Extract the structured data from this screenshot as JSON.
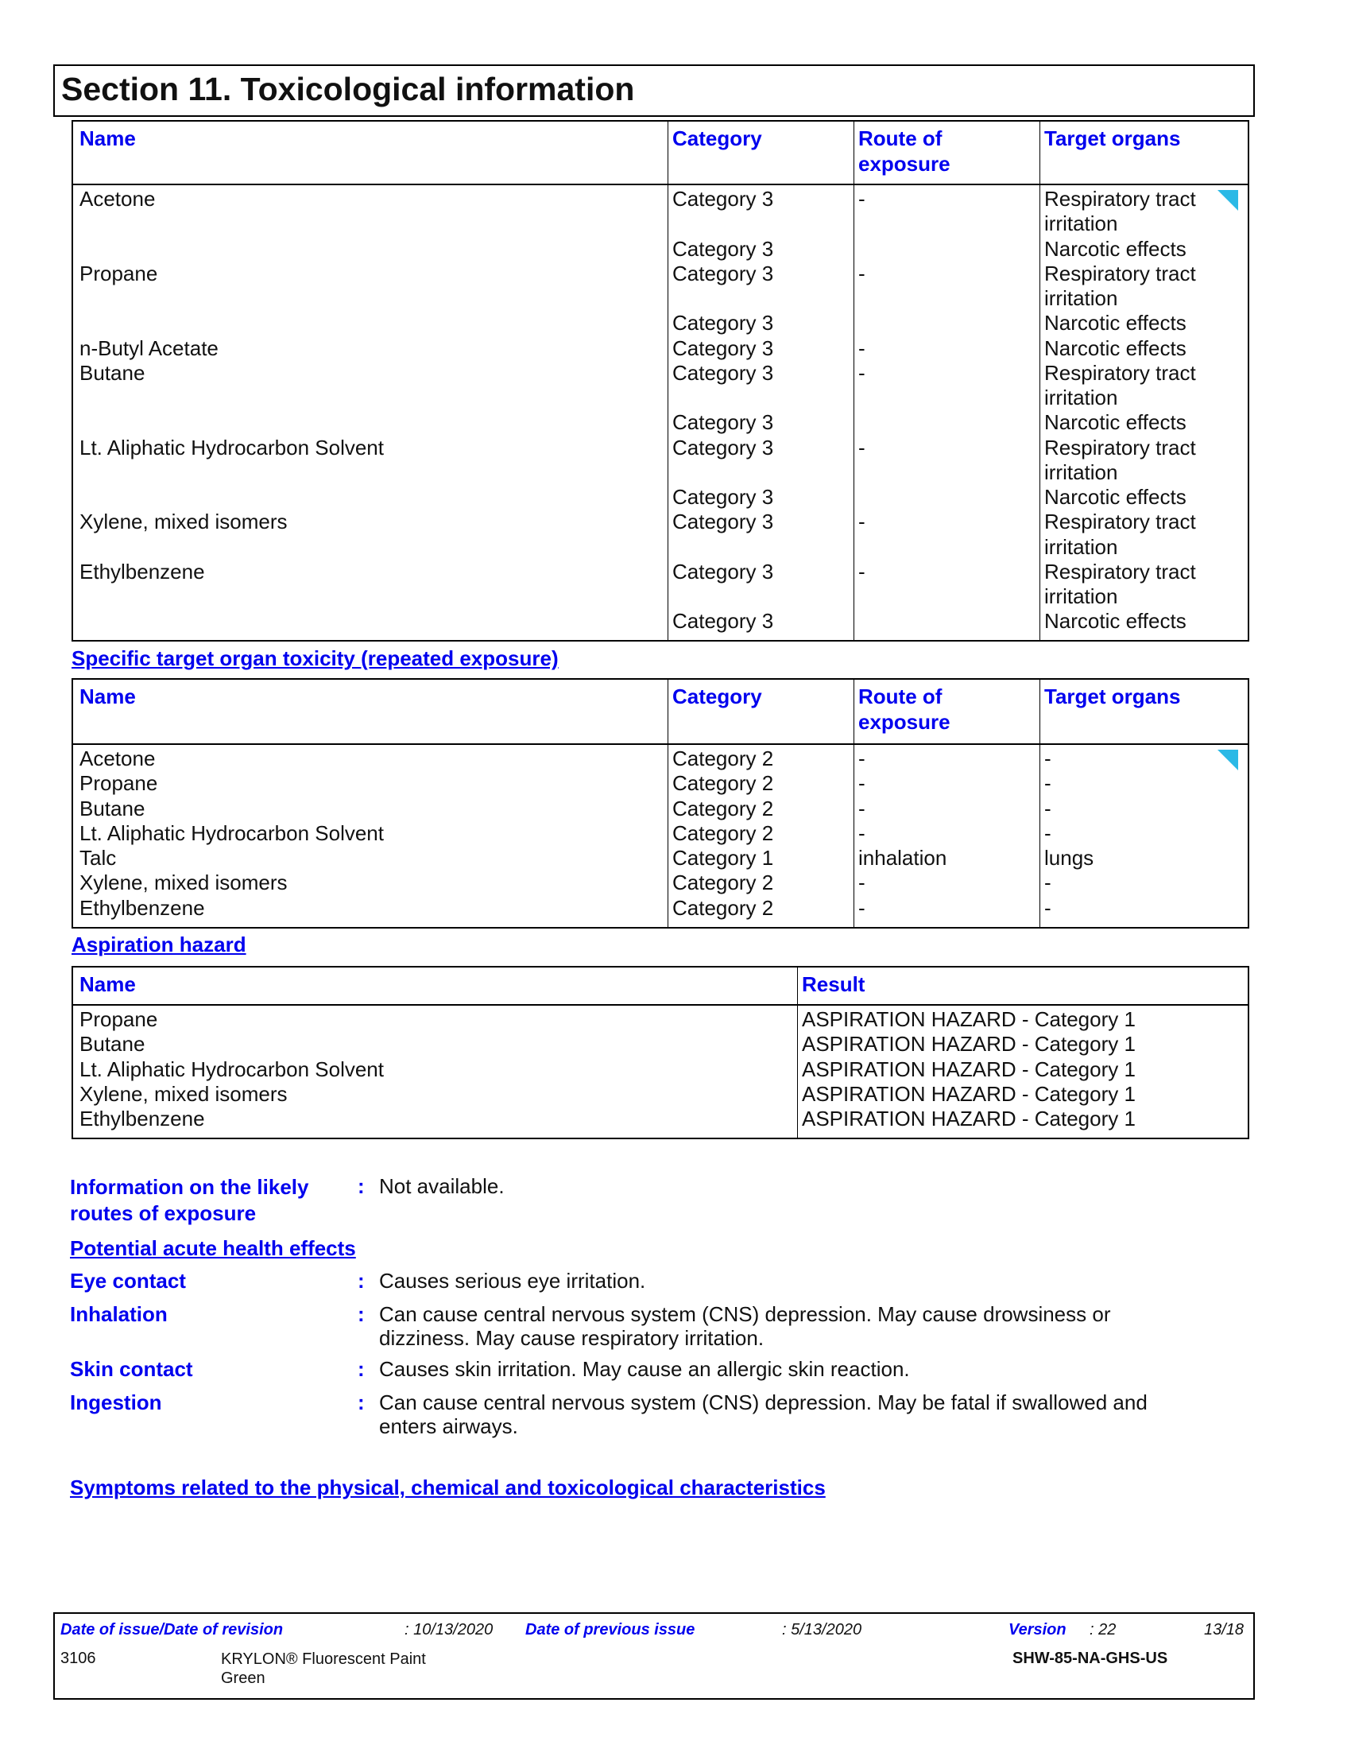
{
  "section_title": "Section 11. Toxicological information",
  "headers": {
    "name": "Name",
    "category": "Category",
    "route": [
      "Route of",
      "exposure"
    ],
    "target": "Target organs",
    "result": "Result"
  },
  "single_exposure": {
    "rows": [
      {
        "name": "Acetone",
        "route": "-",
        "categories": [
          "Category 3",
          "",
          "Category 3"
        ],
        "targets": [
          "Respiratory tract",
          "irritation",
          "Narcotic effects"
        ]
      },
      {
        "name": "Propane",
        "route": "-",
        "categories": [
          "Category 3",
          "",
          "Category 3"
        ],
        "targets": [
          "Respiratory tract",
          "irritation",
          "Narcotic effects"
        ]
      },
      {
        "name": "n-Butyl Acetate",
        "route": "-",
        "categories": [
          "Category 3"
        ],
        "targets": [
          "Narcotic effects"
        ]
      },
      {
        "name": "Butane",
        "route": "-",
        "categories": [
          "Category 3",
          "",
          "Category 3"
        ],
        "targets": [
          "Respiratory tract",
          "irritation",
          "Narcotic effects"
        ]
      },
      {
        "name": "Lt. Aliphatic Hydrocarbon Solvent",
        "route": "-",
        "categories": [
          "Category 3",
          "",
          "Category 3"
        ],
        "targets": [
          "Respiratory tract",
          "irritation",
          "Narcotic effects"
        ]
      },
      {
        "name": "Xylene, mixed isomers",
        "route": "-",
        "categories": [
          "Category 3"
        ],
        "targets": [
          "Respiratory tract",
          "irritation"
        ]
      },
      {
        "name": "Ethylbenzene",
        "route": "-",
        "categories": [
          "Category 3",
          "",
          "Category 3"
        ],
        "targets": [
          "Respiratory tract",
          "irritation",
          "Narcotic effects"
        ]
      }
    ]
  },
  "repeated_exposure": {
    "title": "Specific target organ toxicity (repeated exposure)",
    "rows": [
      {
        "name": "Acetone",
        "category": "Category 2",
        "route": "-",
        "target": "-"
      },
      {
        "name": "Propane",
        "category": "Category 2",
        "route": "-",
        "target": "-"
      },
      {
        "name": "Butane",
        "category": "Category 2",
        "route": "-",
        "target": "-"
      },
      {
        "name": "Lt. Aliphatic Hydrocarbon Solvent",
        "category": "Category 2",
        "route": "-",
        "target": "-"
      },
      {
        "name": "Talc",
        "category": "Category 1",
        "route": "inhalation",
        "target": "lungs"
      },
      {
        "name": "Xylene, mixed isomers",
        "category": "Category 2",
        "route": "-",
        "target": "-"
      },
      {
        "name": "Ethylbenzene",
        "category": "Category 2",
        "route": "-",
        "target": "-"
      }
    ]
  },
  "aspiration": {
    "title": "Aspiration hazard",
    "rows": [
      {
        "name": "Propane",
        "result": "ASPIRATION HAZARD - Category 1"
      },
      {
        "name": "Butane",
        "result": "ASPIRATION HAZARD - Category 1"
      },
      {
        "name": "Lt. Aliphatic Hydrocarbon Solvent",
        "result": "ASPIRATION HAZARD - Category 1"
      },
      {
        "name": "Xylene, mixed isomers",
        "result": "ASPIRATION HAZARD - Category 1"
      },
      {
        "name": "Ethylbenzene",
        "result": "ASPIRATION HAZARD - Category 1"
      }
    ]
  },
  "routes": {
    "label": [
      "Information on the likely",
      "routes of exposure"
    ],
    "value": "Not available."
  },
  "acute": {
    "title": "Potential acute health effects",
    "items": [
      {
        "label": "Eye contact",
        "lines": [
          "Causes serious eye irritation."
        ]
      },
      {
        "label": "Inhalation",
        "lines": [
          "Can cause central nervous system (CNS) depression.  May cause drowsiness or",
          "dizziness.  May cause respiratory irritation."
        ]
      },
      {
        "label": "Skin contact",
        "lines": [
          "Causes skin irritation.  May cause an allergic skin reaction."
        ]
      },
      {
        "label": "Ingestion",
        "lines": [
          "Can cause central nervous system (CNS) depression.  May be fatal if swallowed and",
          "enters airways."
        ]
      }
    ]
  },
  "colon": ":",
  "symptoms_title": "Symptoms related to the physical, chemical and toxicological characteristics",
  "footer": {
    "issue_label": "Date of issue/Date of revision",
    "issue_value": ": 10/13/2020",
    "prev_label": "Date of previous issue",
    "prev_value": ": 5/13/2020",
    "version_label": "Version",
    "version_value": ": 22",
    "page": "13/18",
    "code": "3106",
    "product": [
      "KRYLON® Fluorescent Paint",
      "Green"
    ],
    "doc_id": "SHW-85-NA-GHS-US"
  },
  "colors": {
    "heading": "#0000ee",
    "marker": "#2bb9e6"
  }
}
